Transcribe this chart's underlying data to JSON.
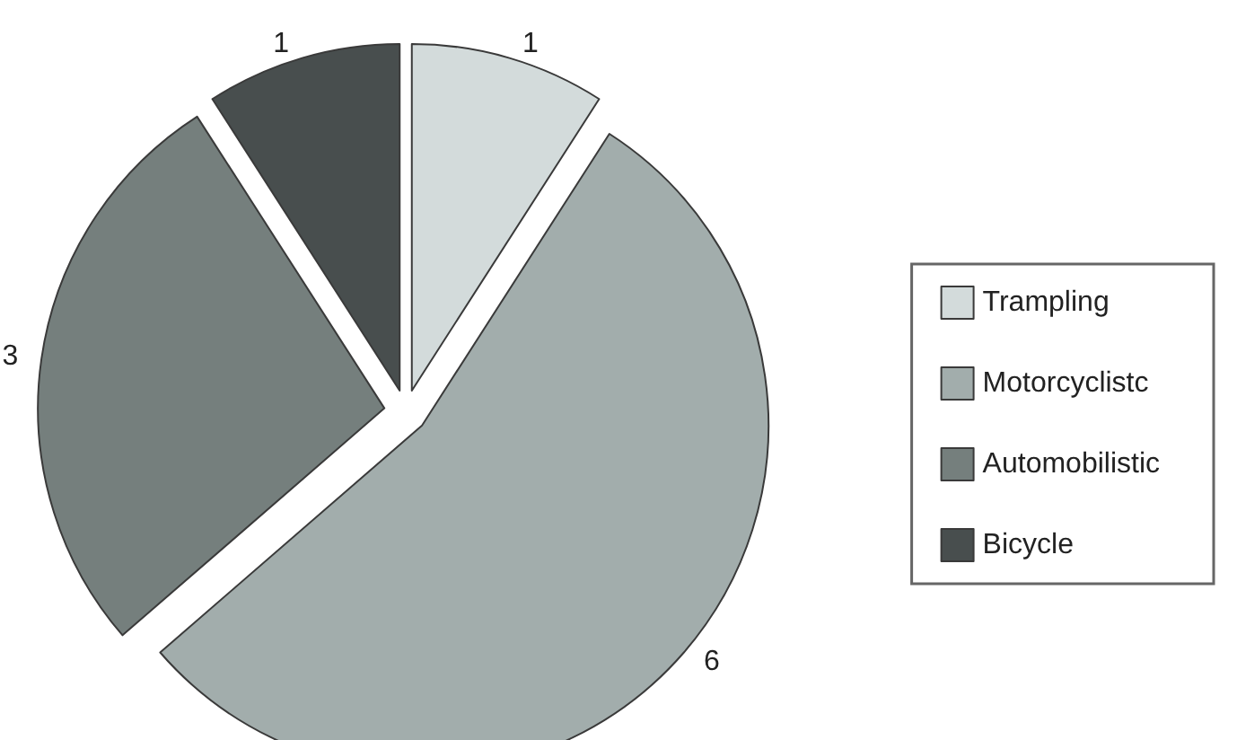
{
  "chart_data": {
    "type": "pie",
    "categories": [
      "Trampling",
      "Motorcyclistc",
      "Automobilistic",
      "Bicycle"
    ],
    "values": [
      1,
      6,
      3,
      1
    ],
    "colors": [
      "#d3dbdb",
      "#a2adac",
      "#757f7d",
      "#484e4e"
    ],
    "data_labels": true,
    "legend": "right"
  }
}
